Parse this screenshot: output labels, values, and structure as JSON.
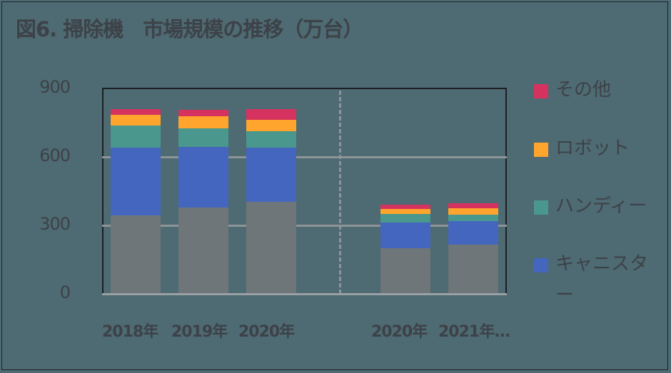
{
  "title": "図6. 掃除機　市場規模の推移（万台）",
  "y_ticks": [
    "900",
    "600",
    "300",
    "0"
  ],
  "x_labels": [
    "2018年",
    "2019年",
    "2020年",
    "2020年",
    "2021年..."
  ],
  "legend": [
    {
      "label": "その他",
      "color": "#d5325f"
    },
    {
      "label": "ロボット",
      "color": "#ffa42c"
    },
    {
      "label": "ハンディー",
      "color": "#4a978d"
    },
    {
      "label": "キャニスター",
      "color": "#4466bf"
    }
  ],
  "colors": {
    "background": "#4e6a72",
    "gray_series": "#6e7679",
    "canister": "#4466bf",
    "handy": "#4a978d",
    "robot": "#ffa42c",
    "other": "#d5325f"
  },
  "chart_data": {
    "type": "bar",
    "stacked": true,
    "title": "図6. 掃除機　市場規模の推移（万台）",
    "xlabel": "",
    "ylabel": "万台",
    "ylim": [
      0,
      900
    ],
    "yticks": [
      0,
      300,
      600,
      900
    ],
    "grid": true,
    "legend_position": "right",
    "categories": [
      "2018年",
      "2019年",
      "2020年",
      "2020年",
      "2021年..."
    ],
    "series": [
      {
        "name": "(unlabeled gray)",
        "color": "#6e7679",
        "values": [
          344,
          378,
          403,
          200,
          216
        ]
      },
      {
        "name": "キャニスター",
        "color": "#4466bf",
        "values": [
          296,
          266,
          238,
          112,
          103
        ]
      },
      {
        "name": "ハンディー",
        "color": "#4a978d",
        "values": [
          97,
          81,
          72,
          38,
          28
        ]
      },
      {
        "name": "ロボット",
        "color": "#ffa42c",
        "values": [
          47,
          53,
          50,
          22,
          28
        ]
      },
      {
        "name": "その他",
        "color": "#d5325f",
        "values": [
          25,
          28,
          46,
          19,
          22
        ]
      }
    ],
    "annotations": [
      "dashed vertical separator between 3rd and 4th bar groups"
    ]
  }
}
